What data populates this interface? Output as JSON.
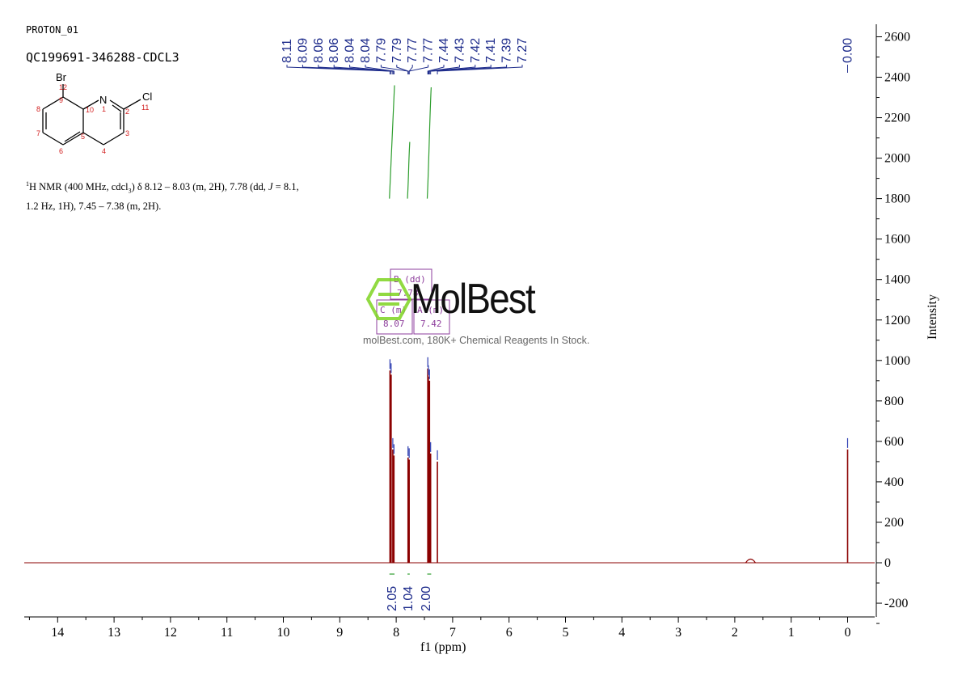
{
  "header": {
    "experiment": "PROTON_01",
    "sample": "QC199691-346288-CDCL3"
  },
  "nmr_text": {
    "line1_pre": "H NMR (400 MHz, cdcl",
    "sup1": "1",
    "sub3": "3",
    "line1_post": ") δ 8.12 – 8.03 (m, 2H), 7.78 (dd, ",
    "j_symbol": "J",
    "line1_end": " = 8.1,",
    "line2": "1.2 Hz, 1H), 7.45 – 7.38 (m, 2H)."
  },
  "structure": {
    "atoms": [
      "Br",
      "N",
      "Cl"
    ],
    "numbers": [
      "12",
      "9",
      "8",
      "10",
      "1",
      "2",
      "11",
      "7",
      "5",
      "3",
      "6",
      "4"
    ]
  },
  "watermark": {
    "brand": "MolBest",
    "tagline": "molBest.com, 180K+ Chemical Reagents In Stock."
  },
  "colors": {
    "spectrum": "#8b0000",
    "peak_labels": "#1f2d8c",
    "integral": "#2e9e2e",
    "multiplet": "#8d3d9c",
    "watermark_green": "#7ed321"
  },
  "chart_data": {
    "type": "line",
    "xlabel": "f1 (ppm)",
    "ylabel": "Intensity",
    "xlim": [
      14.5,
      -0.5
    ],
    "ylim": [
      -250,
      2650
    ],
    "x_reversed": true,
    "x_ticks": [
      "14",
      "13",
      "12",
      "11",
      "10",
      "9",
      "8",
      "7",
      "6",
      "5",
      "4",
      "3",
      "2",
      "1",
      "0"
    ],
    "y_ticks": [
      "2600",
      "2400",
      "2200",
      "2000",
      "1800",
      "1600",
      "1400",
      "1200",
      "1000",
      "800",
      "600",
      "400",
      "200",
      "0",
      "-200"
    ],
    "peak_labels": [
      "8.11",
      "8.09",
      "8.06",
      "8.06",
      "8.04",
      "8.04",
      "7.79",
      "7.79",
      "7.77",
      "7.77",
      "7.44",
      "7.43",
      "7.42",
      "7.41",
      "7.39",
      "7.27"
    ],
    "tms_label": "0.00",
    "peaks": [
      {
        "ppm": 8.11,
        "height": 950
      },
      {
        "ppm": 8.09,
        "height": 930
      },
      {
        "ppm": 8.06,
        "height": 560
      },
      {
        "ppm": 8.04,
        "height": 530
      },
      {
        "ppm": 7.79,
        "height": 520
      },
      {
        "ppm": 7.77,
        "height": 510
      },
      {
        "ppm": 7.44,
        "height": 960
      },
      {
        "ppm": 7.43,
        "height": 920
      },
      {
        "ppm": 7.41,
        "height": 900
      },
      {
        "ppm": 7.39,
        "height": 540
      },
      {
        "ppm": 7.27,
        "height": 500
      },
      {
        "ppm": 1.72,
        "height": 18
      },
      {
        "ppm": 0.0,
        "height": 560
      }
    ],
    "integrals": [
      {
        "label": "2.05",
        "from": 8.12,
        "to": 8.03
      },
      {
        "label": "1.04",
        "from": 7.8,
        "to": 7.76
      },
      {
        "label": "2.00",
        "from": 7.45,
        "to": 7.38
      }
    ],
    "integral_curve_levels": [
      {
        "from": 8.12,
        "to": 8.03,
        "start": 1800,
        "end": 2360
      },
      {
        "from": 7.8,
        "to": 7.76,
        "start": 1800,
        "end": 2080
      },
      {
        "from": 7.45,
        "to": 7.38,
        "start": 1800,
        "end": 2350
      }
    ],
    "multiplets": [
      {
        "code": "B",
        "kind": "(dd)",
        "shift": "7.78"
      },
      {
        "code": "C",
        "kind": "(m)",
        "shift": "8.07"
      },
      {
        "code": "A",
        "kind": "(m)",
        "shift": "7.42"
      }
    ]
  }
}
